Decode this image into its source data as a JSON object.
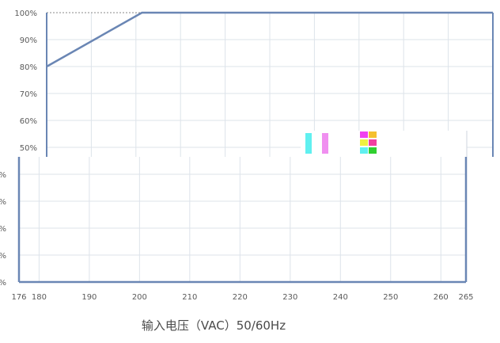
{
  "chart_data": {
    "type": "line",
    "title": "",
    "xlabel": "输入电压（VAC）50/60Hz",
    "ylabel": "",
    "xlim": [
      176,
      265
    ],
    "ylim": [
      0,
      100
    ],
    "x_ticks": [
      "176",
      "180",
      "190",
      "200",
      "210",
      "220",
      "230",
      "240",
      "250",
      "260",
      "265"
    ],
    "y_ticks_upper": [
      "100%",
      "90%",
      "80%",
      "70%",
      "60%",
      "50%"
    ],
    "y_ticks_lower": [
      "%",
      "%",
      "%",
      "%",
      "%"
    ],
    "grid": true,
    "series": [
      {
        "x": [
          176,
          195,
          265
        ],
        "y": [
          80,
          100,
          100
        ]
      }
    ],
    "colors": {
      "line": "#6a86b4",
      "frame": "#6a86b4",
      "grid": "#dde3ea",
      "tick_text": "#5a5a5a"
    }
  }
}
